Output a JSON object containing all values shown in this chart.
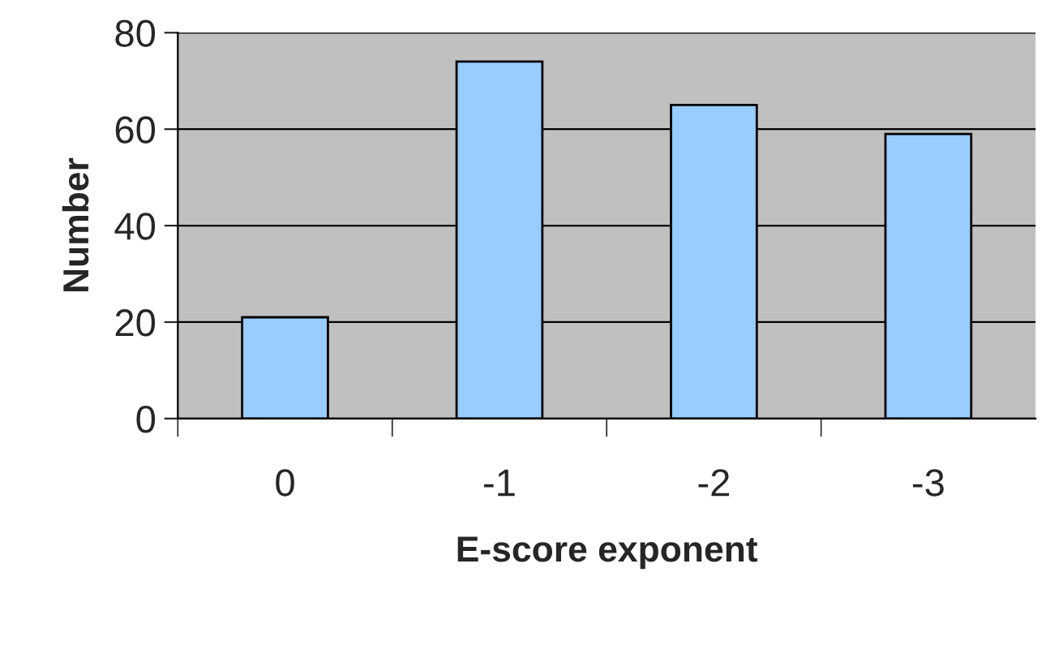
{
  "chart_data": {
    "type": "bar",
    "xlabel": "E-score exponent",
    "ylabel": "Number",
    "categories": [
      "0",
      "-1",
      "-2",
      "-3"
    ],
    "values": [
      21,
      74,
      65,
      59
    ],
    "color": "#99ccff",
    "ylim": [
      0,
      80
    ],
    "yticks": [
      0,
      20,
      40,
      60,
      80
    ],
    "grid": "y"
  }
}
